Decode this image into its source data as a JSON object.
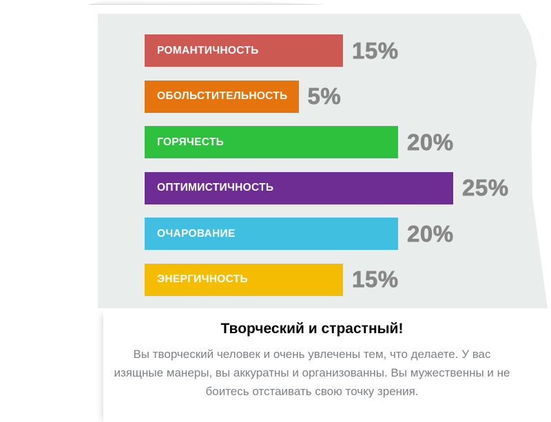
{
  "chart_data": {
    "type": "bar",
    "orientation": "horizontal",
    "categories": [
      "РОМАНТИЧНОСТЬ",
      "ОБОЛЬСТИТЕЛЬНОСТЬ",
      "ГОРЯЧЕСТЬ",
      "ОПТИМИСТИЧНОСТЬ",
      "ОЧАРОВАНИЕ",
      "ЭНЕРГИЧНОСТЬ"
    ],
    "values": [
      15,
      5,
      20,
      25,
      20,
      15
    ],
    "value_labels": [
      "15%",
      "5%",
      "20%",
      "25%",
      "20%",
      "15%"
    ],
    "bar_colors": [
      "#cd5a52",
      "#e5740e",
      "#2dc13e",
      "#6e2d92",
      "#41bfe1",
      "#f5bc04"
    ],
    "bar_label_color": "#ffffff",
    "value_label_color": "#878787",
    "panel_background": "#e9edec",
    "xlim": [
      0,
      25
    ],
    "grid": false,
    "legend": false,
    "title": "",
    "xlabel": "",
    "ylabel": ""
  },
  "result": {
    "title": "Творческий и страстный!",
    "description": "Вы творческий человек и очень увлечены тем, что делаете. У вас изящные манеры, вы аккуратны и организованны. Вы мужественны и не боитесь отстаивать свою точку зрения."
  }
}
